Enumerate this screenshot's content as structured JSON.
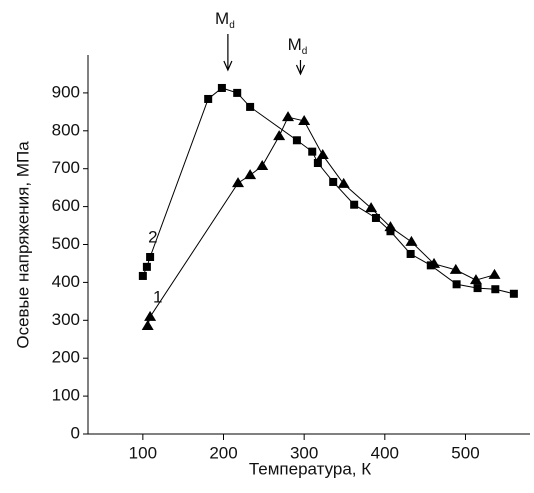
{
  "chart_data": {
    "type": "line",
    "x_label": "Температура, К",
    "y_label": "Осевые напряжения, МПа",
    "xlim": [
      32,
      580
    ],
    "ylim": [
      0,
      1000
    ],
    "xticks": [
      100,
      200,
      300,
      400,
      500
    ],
    "yticks": [
      0,
      100,
      200,
      300,
      400,
      500,
      600,
      700,
      800,
      900
    ],
    "series": [
      {
        "name": "1",
        "marker": "triangle",
        "color": "#000000",
        "x": [
          106,
          109,
          218,
          233,
          248,
          269,
          280,
          300,
          323,
          349,
          383,
          407,
          433,
          461,
          488,
          513,
          536
        ],
        "values": [
          285,
          309,
          662,
          683,
          707,
          786,
          836,
          826,
          736,
          660,
          596,
          546,
          507,
          449,
          433,
          406,
          420
        ]
      },
      {
        "name": "2",
        "marker": "square",
        "color": "#000000",
        "x": [
          100,
          105,
          109,
          181,
          198,
          217,
          233,
          291,
          310,
          317,
          336,
          362,
          389,
          407,
          432,
          457,
          489,
          515,
          537,
          560
        ],
        "values": [
          417,
          441,
          467,
          884,
          913,
          900,
          863,
          775,
          745,
          715,
          665,
          605,
          570,
          535,
          475,
          445,
          395,
          385,
          382,
          370
        ]
      }
    ],
    "annotations": [
      {
        "text": "M",
        "sub": "d",
        "x": 198
      },
      {
        "text": "M",
        "sub": "d",
        "x": 288
      }
    ]
  }
}
